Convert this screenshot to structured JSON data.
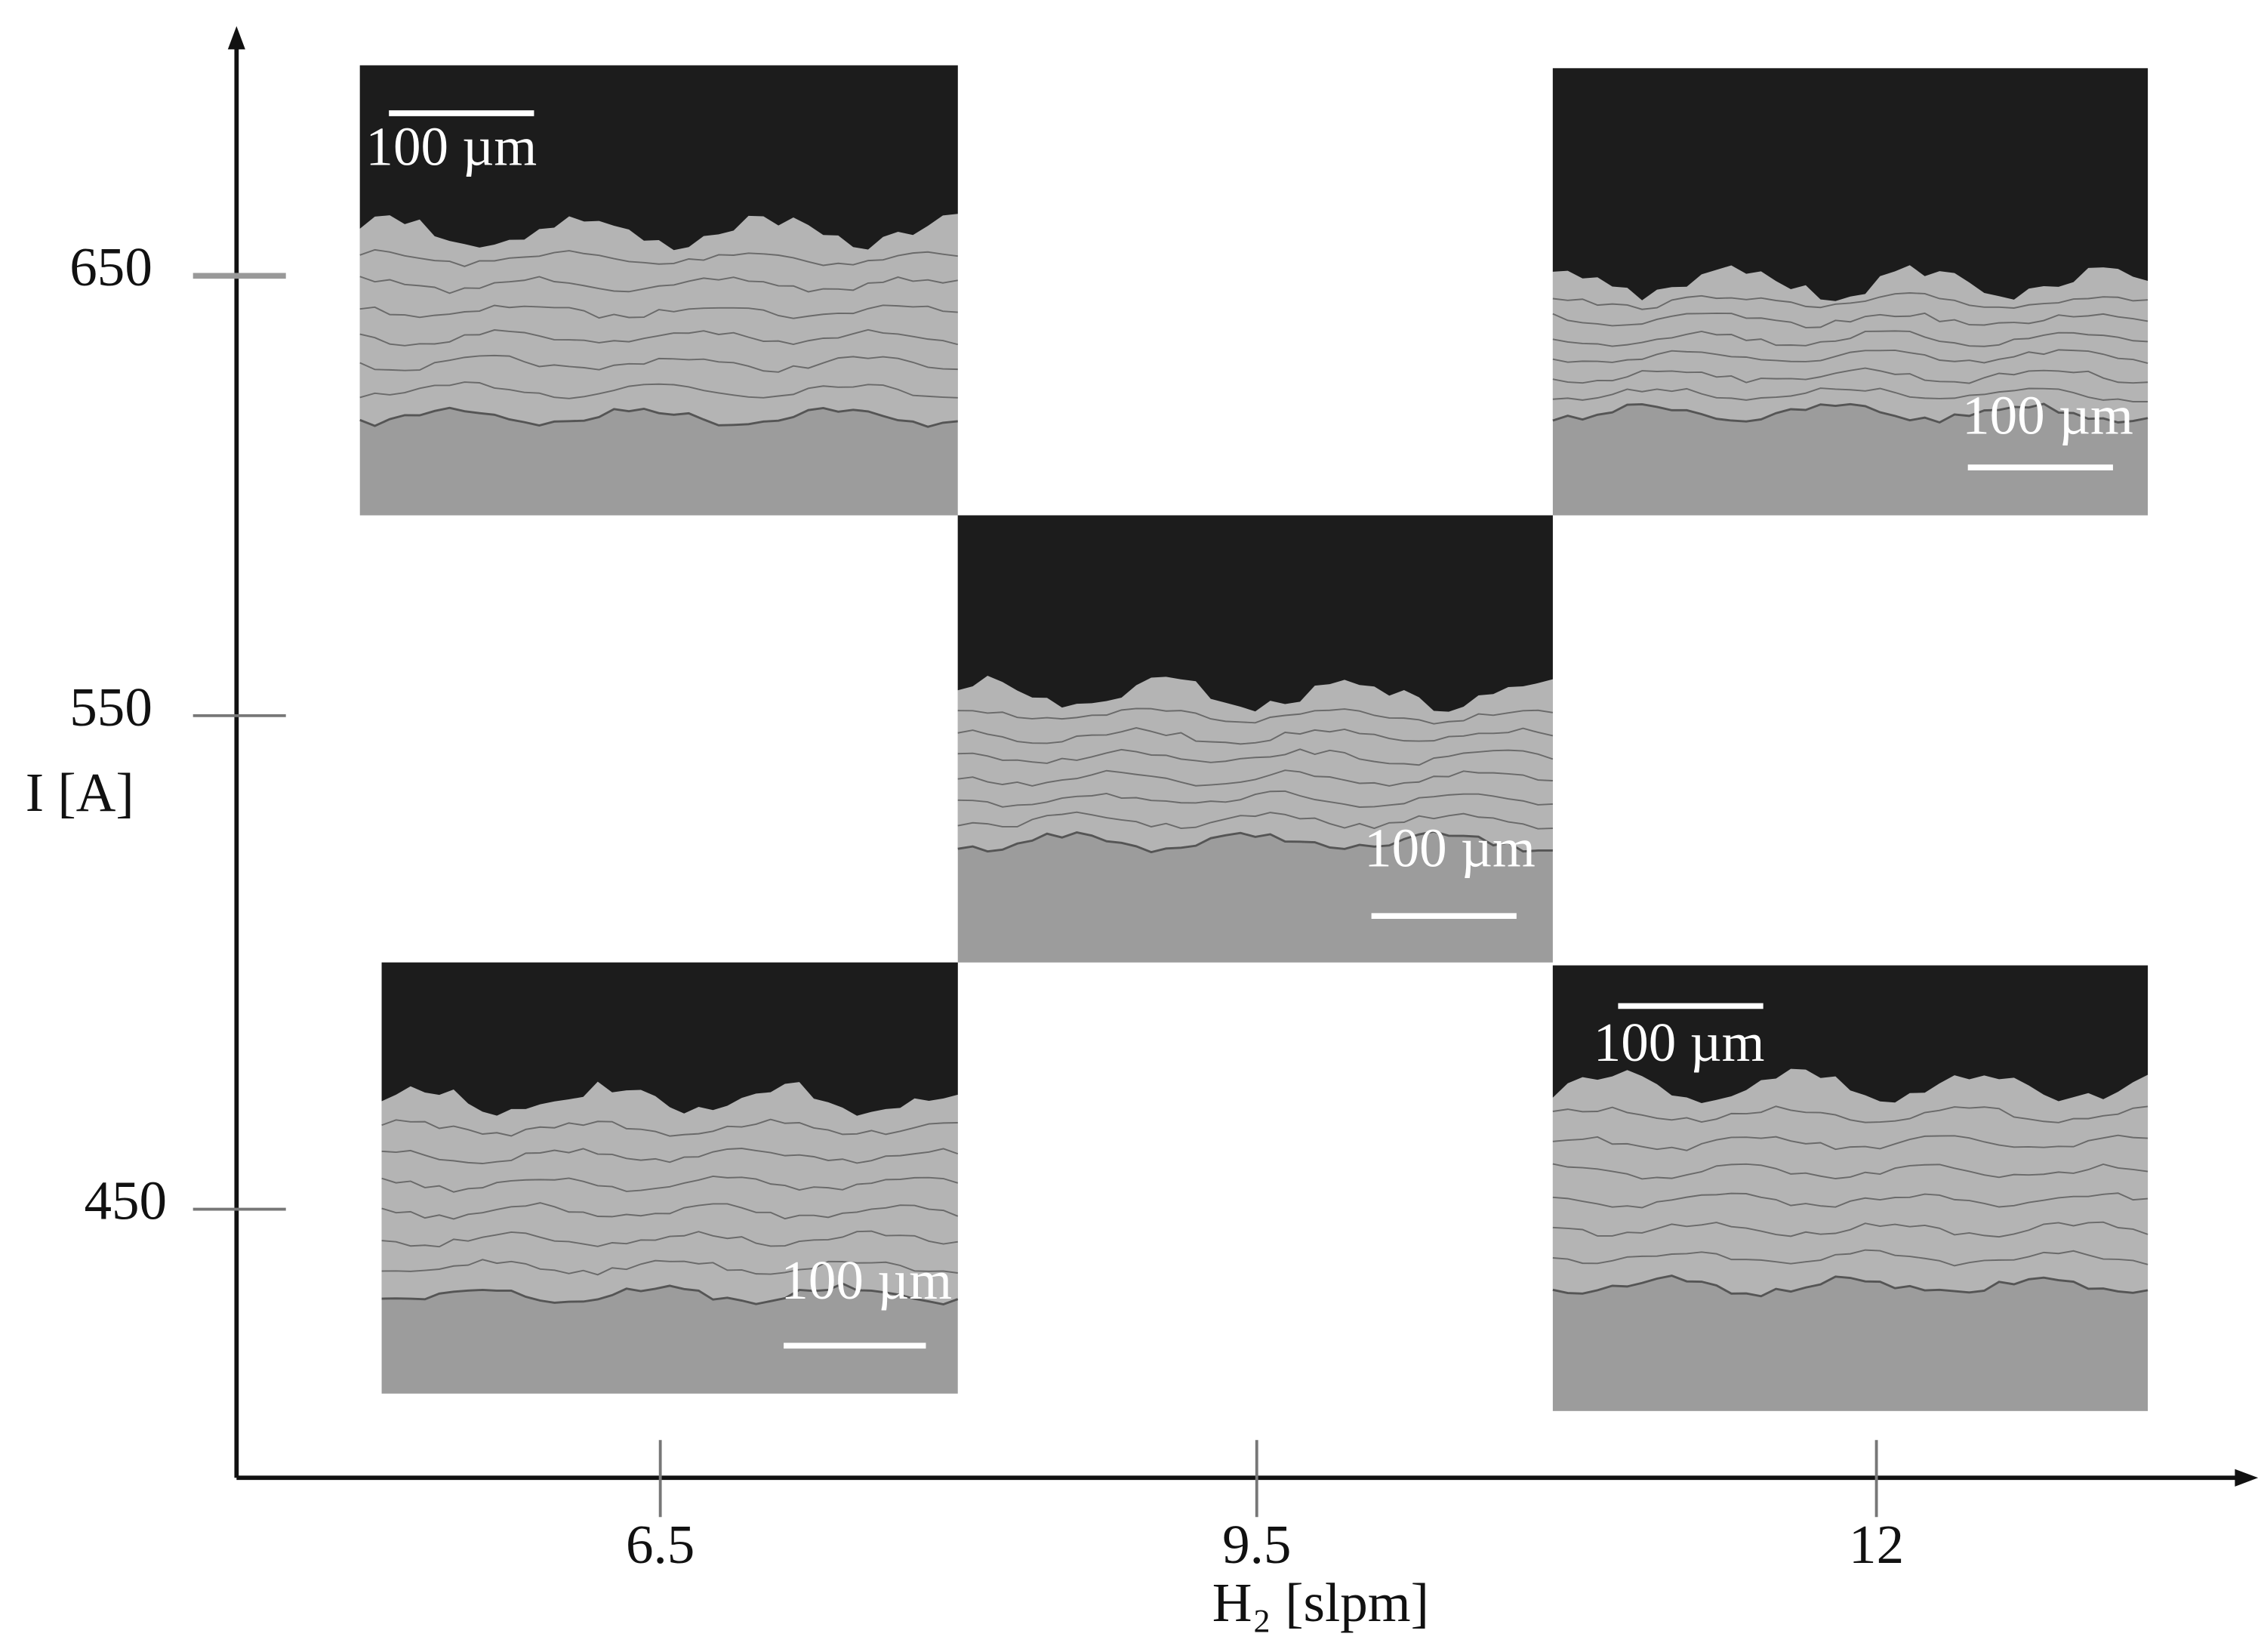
{
  "x_axis": {
    "label": "H₂ [slpm]",
    "ticks": [
      "6.5",
      "9.5",
      "12"
    ]
  },
  "y_axis": {
    "label": "I [A]",
    "ticks": [
      "650",
      "550",
      "450"
    ]
  },
  "micrographs": [
    {
      "scale_label": "100 µm"
    },
    {
      "scale_label": "100 µm"
    },
    {
      "scale_label": "100 µm"
    },
    {
      "scale_label": "100 µm"
    },
    {
      "scale_label": "100 µm"
    }
  ]
}
